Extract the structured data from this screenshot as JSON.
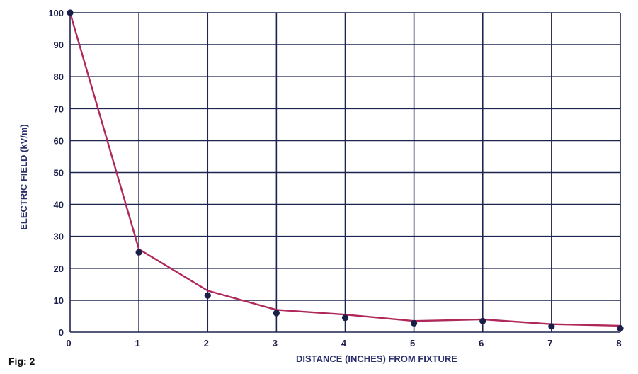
{
  "figure_label": "Fig: 2",
  "chart_data": {
    "type": "line",
    "xlabel": "DISTANCE (INCHES) FROM FIXTURE",
    "ylabel": "ELECTRIC FIELD (kV/m)",
    "xlim": [
      0,
      8
    ],
    "ylim": [
      0,
      100
    ],
    "x_ticks": [
      "0",
      "1",
      "2",
      "3",
      "4",
      "5",
      "6",
      "7",
      "8"
    ],
    "y_ticks": [
      "0",
      "10",
      "20",
      "30",
      "40",
      "50",
      "60",
      "70",
      "80",
      "90",
      "100"
    ],
    "grid": true,
    "line_color": "#b0285a",
    "marker_color": "#1a1f4a",
    "line_points": {
      "x": [
        0,
        1,
        2,
        3,
        4,
        5,
        6,
        7,
        8
      ],
      "y": [
        100,
        26,
        13,
        7,
        5.5,
        3.5,
        4,
        2.5,
        2
      ]
    },
    "markers": {
      "x": [
        0,
        1,
        2,
        3,
        4,
        5,
        6,
        7,
        8
      ],
      "y": [
        100,
        25,
        11.5,
        6,
        4.5,
        2.8,
        3.5,
        1.8,
        1.2
      ]
    }
  }
}
